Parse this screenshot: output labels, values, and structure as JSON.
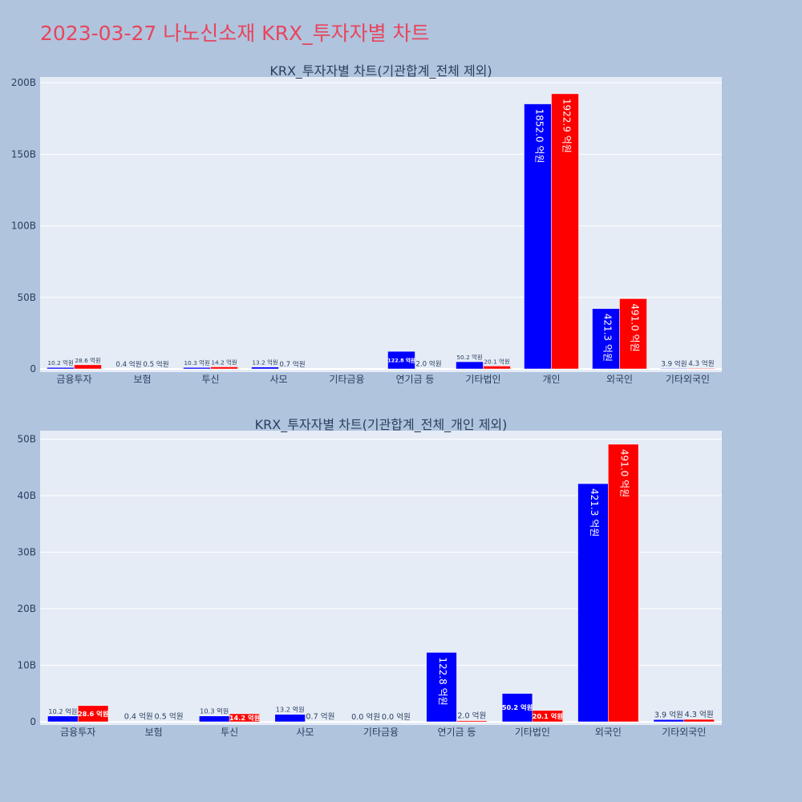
{
  "title": "2023-03-27 나노신소재 KRX_투자자별 차트",
  "colors": {
    "buy": "#0000ff",
    "sell": "#ff0000",
    "plot_bg": "#e5ecf6",
    "page_bg": "#b0c4de",
    "title": "#e8455d"
  },
  "chart_data": [
    {
      "type": "bar",
      "title": "KRX_투자자별 차트(기관합계_전체 제외)",
      "categories": [
        "금융투자",
        "보험",
        "투신",
        "사모",
        "기타금융",
        "연기금 등",
        "기타법인",
        "개인",
        "외국인",
        "기타외국인"
      ],
      "series": [
        {
          "values": [
            1.02,
            0.04,
            1.03,
            1.32,
            0,
            12.28,
            5.02,
            185.2,
            42.13,
            0.39
          ],
          "labels": [
            "10.2 억원",
            "0.4 억원",
            "10.3 억원",
            "13.2 억원",
            "",
            "122.8 억원",
            "50.2 억원",
            "1852.0 억원",
            "421.3 억원",
            "3.9 억원"
          ]
        },
        {
          "values": [
            2.86,
            0.05,
            1.42,
            0.07,
            0,
            0.2,
            2.01,
            192.29,
            49.1,
            0.43
          ],
          "labels": [
            "28.6 억원",
            "0.5 억원",
            "14.2 억원",
            "0.7 억원",
            "",
            "2.0 억원",
            "20.1 억원",
            "1922.9 억원",
            "491.0 억원",
            "4.3 억원"
          ]
        }
      ],
      "ylim": [
        0,
        204
      ],
      "yticks": [
        0,
        50,
        100,
        150,
        200
      ],
      "ytick_labels": [
        "0",
        "50B",
        "100B",
        "150B",
        "200B"
      ],
      "grid": true
    },
    {
      "type": "bar",
      "title": "KRX_투자자별 차트(기관합계_전체_개인 제외)",
      "categories": [
        "금융투자",
        "보험",
        "투신",
        "사모",
        "기타금융",
        "연기금 등",
        "기타법인",
        "외국인",
        "기타외국인"
      ],
      "series": [
        {
          "values": [
            1.02,
            0.04,
            1.03,
            1.32,
            0,
            12.28,
            5.02,
            42.13,
            0.39
          ],
          "labels": [
            "10.2 억원",
            "0.4 억원",
            "10.3 억원",
            "13.2 억원",
            "0.0 억원",
            "122.8 억원",
            "50.2 억원",
            "421.3 억원",
            "3.9 억원"
          ]
        },
        {
          "values": [
            2.86,
            0.05,
            1.42,
            0.07,
            0,
            0.2,
            2.01,
            49.1,
            0.43
          ],
          "labels": [
            "28.6 억원",
            "0.5 억원",
            "14.2 억원",
            "0.7 억원",
            "0.0 억원",
            "2.0 억원",
            "20.1 억원",
            "491.0 억원",
            "4.3 억원"
          ]
        }
      ],
      "ylim": [
        0,
        51.5
      ],
      "yticks": [
        0,
        10,
        20,
        30,
        40,
        50
      ],
      "ytick_labels": [
        "0",
        "10B",
        "20B",
        "30B",
        "40B",
        "50B"
      ],
      "grid": true
    }
  ]
}
